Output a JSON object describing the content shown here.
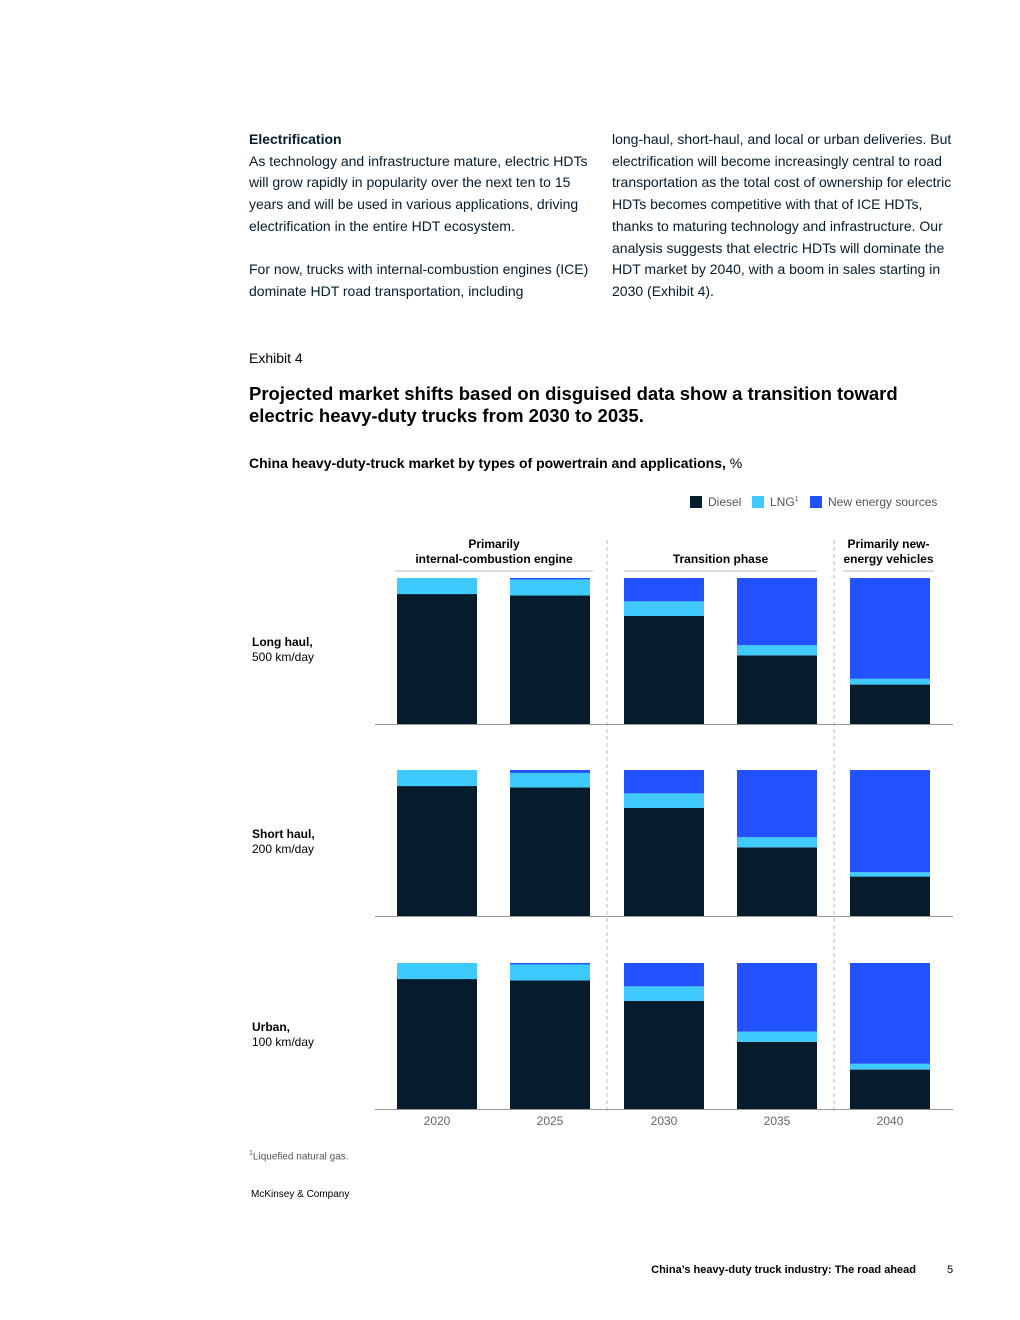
{
  "text": {
    "left_heading": "Electrification",
    "left_p1": "As technology and infrastructure mature, electric HDTs will grow rapidly in popularity over the next ten to 15 years and will be used in various applications, driving electrification in the entire HDT ecosystem.",
    "left_p2": "For now, trucks with internal-combustion engines (ICE) dominate HDT road transportation, including",
    "right_p": "long-haul, short-haul, and local or urban deliveries. But electrification will become increasingly central to road transportation as the total cost of ownership for electric HDTs becomes competitive with that of ICE HDTs, thanks to maturing technology and infrastructure. Our analysis suggests that electric HDTs will dominate the HDT market by 2040, with a boom in sales starting in 2030 (Exhibit 4)."
  },
  "exhibit": {
    "label": "Exhibit 4",
    "title": "Projected market shifts based on disguised data show a transition toward electric heavy-duty trucks from 2030 to 2035.",
    "subtitle_bold": "China heavy-duty-truck market by types of powertrain and applications,",
    "subtitle_unit": " %"
  },
  "chart_data": {
    "type": "bar",
    "stacked": true,
    "orientation": "vertical",
    "categories": [
      "2020",
      "2025",
      "2030",
      "2035",
      "2040"
    ],
    "legend": [
      {
        "name": "Diesel",
        "color": "#051c2c"
      },
      {
        "name": "LNG",
        "sup": "1",
        "color": "#3fcaff"
      },
      {
        "name": "New energy sources",
        "color": "#2251ff"
      }
    ],
    "phases": [
      {
        "label_lines": [
          "Primarily",
          "internal-combustion engine"
        ],
        "categories": [
          "2020",
          "2025"
        ]
      },
      {
        "label_lines": [
          "Transition phase"
        ],
        "categories": [
          "2030",
          "2035"
        ]
      },
      {
        "label_lines": [
          "Primarily new-",
          "energy vehicles"
        ],
        "categories": [
          "2040"
        ]
      }
    ],
    "ylim": [
      0,
      100
    ],
    "panels": [
      {
        "label_bold": "Long haul,",
        "label_sub": "500 km/day",
        "series": [
          {
            "name": "Diesel",
            "values": [
              89,
              88,
              74,
              47,
              27
            ]
          },
          {
            "name": "LNG",
            "values": [
              11,
              11,
              10,
              7,
              4
            ]
          },
          {
            "name": "New energy sources",
            "values": [
              0,
              1,
              16,
              46,
              69
            ]
          }
        ]
      },
      {
        "label_bold": "Short haul,",
        "label_sub": "200 km/day",
        "series": [
          {
            "name": "Diesel",
            "values": [
              89,
              88,
              74,
              47,
              27
            ]
          },
          {
            "name": "LNG",
            "values": [
              11,
              10,
              10,
              7,
              3
            ]
          },
          {
            "name": "New energy sources",
            "values": [
              0,
              2,
              16,
              46,
              70
            ]
          }
        ]
      },
      {
        "label_bold": "Urban,",
        "label_sub": "100 km/day",
        "series": [
          {
            "name": "Diesel",
            "values": [
              89,
              88,
              74,
              46,
              27
            ]
          },
          {
            "name": "LNG",
            "values": [
              11,
              11,
              10,
              7,
              4
            ]
          },
          {
            "name": "New energy sources",
            "values": [
              0,
              1,
              16,
              47,
              69
            ]
          }
        ]
      }
    ]
  },
  "footnote": {
    "sup": "1",
    "text": "Liquefied natural gas."
  },
  "source": "McKinsey & Company",
  "footer": {
    "title": "China’s heavy-duty truck industry: The road ahead",
    "page": "5"
  }
}
